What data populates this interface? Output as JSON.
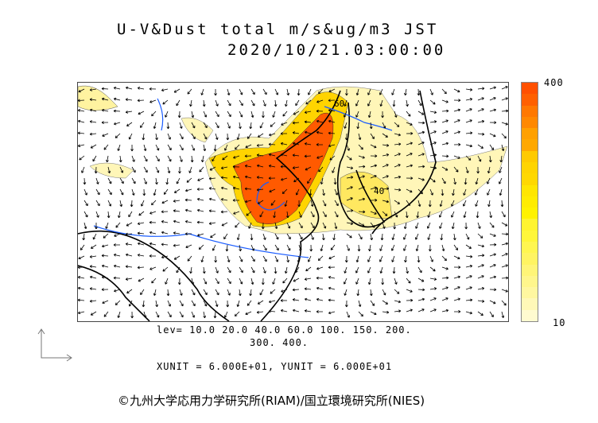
{
  "title": {
    "line1": "U-V&Dust total m/s&ug/m3 JST",
    "line2": "2020/10/21.03:00:00"
  },
  "colorbar": {
    "max_label": "400",
    "min_label": "10",
    "colors": [
      "#fffbd0",
      "#fff8b8",
      "#fff7a0",
      "#fff68c",
      "#fff578",
      "#fff462",
      "#fff650",
      "#fff63a",
      "#fff430",
      "#fff200",
      "#ffec00",
      "#ffe600",
      "#ffd800",
      "#ffd400",
      "#ffca00",
      "#ffa800",
      "#ffa000",
      "#ff8800",
      "#ff7800",
      "#ff6000",
      "#ff5000"
    ]
  },
  "levels": {
    "line1": "lev= 10.0 20.0 40.0 60.0 100. 150. 200.",
    "line2": "300. 400."
  },
  "units": "XUNIT = 6.000E+01, YUNIT = 6.000E+01",
  "credit": "©九州大学応用力学研究所(RIAM)/国立環境研究所(NIES)",
  "map_labels": {
    "contour_a": "60",
    "contour_b": "40"
  },
  "colors": {
    "coast": "#000000",
    "river": "#1a5cff",
    "dust_high": "#ff5a00",
    "dust_low": "#fff3a8"
  }
}
